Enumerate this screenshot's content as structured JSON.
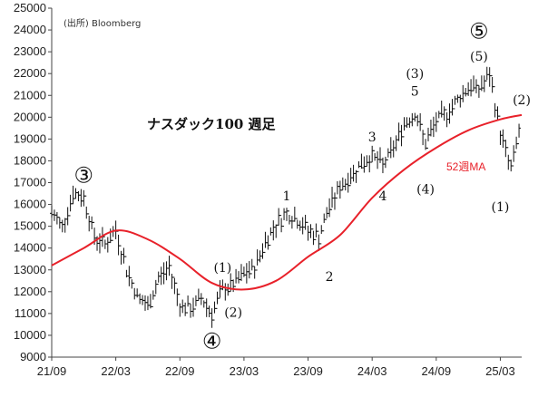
{
  "chart_data": {
    "type": "line",
    "title": "ナスダック100 週足",
    "source": "(出所) Bloomberg",
    "xlabel": "",
    "ylabel": "",
    "ylim": [
      9000,
      25000
    ],
    "y_ticks": [
      "25000",
      "24000",
      "23000",
      "22000",
      "21000",
      "20000",
      "19000",
      "18000",
      "17000",
      "16000",
      "15000",
      "14000",
      "13000",
      "12000",
      "11000",
      "10000",
      "9000"
    ],
    "x_ticks": [
      "21/09",
      "22/03",
      "22/09",
      "23/03",
      "23/09",
      "24/03",
      "24/09",
      "25/03"
    ],
    "x_range": [
      "2021-09",
      "2025-05"
    ],
    "grid": false,
    "price_series": {
      "name": "",
      "color": "#111111",
      "points": [
        [
          "2021-09",
          15600
        ],
        [
          "2021-10",
          15000
        ],
        [
          "2021-11",
          16500
        ],
        [
          "2021-12",
          16300
        ],
        [
          "2022-01",
          14500
        ],
        [
          "2022-02",
          14200
        ],
        [
          "2022-03",
          14800
        ],
        [
          "2022-04",
          13000
        ],
        [
          "2022-05",
          11800
        ],
        [
          "2022-06",
          11300
        ],
        [
          "2022-07",
          12600
        ],
        [
          "2022-08",
          13100
        ],
        [
          "2022-09",
          11400
        ],
        [
          "2022-10",
          11200
        ],
        [
          "2022-11",
          11700
        ],
        [
          "2022-12",
          11000
        ],
        [
          "2023-01",
          12100
        ],
        [
          "2023-02",
          12300
        ],
        [
          "2023-03",
          12800
        ],
        [
          "2023-04",
          13100
        ],
        [
          "2023-05",
          14300
        ],
        [
          "2023-06",
          15100
        ],
        [
          "2023-07",
          15600
        ],
        [
          "2023-08",
          15300
        ],
        [
          "2023-09",
          14800
        ],
        [
          "2023-10",
          14500
        ],
        [
          "2023-11",
          15900
        ],
        [
          "2023-12",
          16800
        ],
        [
          "2024-01",
          17300
        ],
        [
          "2024-02",
          17900
        ],
        [
          "2024-03",
          18200
        ],
        [
          "2024-04",
          17800
        ],
        [
          "2024-05",
          18600
        ],
        [
          "2024-06",
          19700
        ],
        [
          "2024-07",
          20200
        ],
        [
          "2024-08",
          18800
        ],
        [
          "2024-09",
          19800
        ],
        [
          "2024-10",
          20200
        ],
        [
          "2024-11",
          20800
        ],
        [
          "2024-12",
          21400
        ],
        [
          "2025-01",
          21300
        ],
        [
          "2025-02",
          21900
        ],
        [
          "2025-03",
          19300
        ],
        [
          "2025-04",
          17600
        ],
        [
          "2025-05",
          20000
        ]
      ]
    },
    "ma_series": {
      "name": "52週MA",
      "color": "#e8212a",
      "points": [
        [
          "2021-09",
          13200
        ],
        [
          "2021-12",
          14000
        ],
        [
          "2022-03",
          14800
        ],
        [
          "2022-06",
          14400
        ],
        [
          "2022-09",
          13500
        ],
        [
          "2022-12",
          12400
        ],
        [
          "2023-03",
          12100
        ],
        [
          "2023-06",
          12500
        ],
        [
          "2023-09",
          13600
        ],
        [
          "2023-12",
          14600
        ],
        [
          "2024-03",
          16300
        ],
        [
          "2024-06",
          17600
        ],
        [
          "2024-09",
          18600
        ],
        [
          "2024-12",
          19400
        ],
        [
          "2025-03",
          19900
        ],
        [
          "2025-05",
          20100
        ]
      ]
    },
    "annotations": [
      {
        "text": "③",
        "x": "2021-12",
        "y": 17000,
        "style": "circled"
      },
      {
        "text": "④",
        "x": "2022-12",
        "y": 9400,
        "style": "circled"
      },
      {
        "text": "⑤",
        "x": "2025-01",
        "y": 23600,
        "style": "circled"
      },
      {
        "text": "(1)",
        "x": "2023-01",
        "y": 12900,
        "style": "paren"
      },
      {
        "text": "(2)",
        "x": "2023-02",
        "y": 10850,
        "style": "paren"
      },
      {
        "text": "1",
        "x": "2023-07",
        "y": 16200,
        "style": "plain"
      },
      {
        "text": "2",
        "x": "2023-11",
        "y": 12500,
        "style": "plain"
      },
      {
        "text": "3",
        "x": "2024-03",
        "y": 18900,
        "style": "plain"
      },
      {
        "text": "4",
        "x": "2024-04",
        "y": 16200,
        "style": "plain"
      },
      {
        "text": "(3)",
        "x": "2024-07",
        "y": 21800,
        "style": "paren"
      },
      {
        "text": "5",
        "x": "2024-07",
        "y": 21000,
        "style": "plain"
      },
      {
        "text": "(4)",
        "x": "2024-08",
        "y": 16500,
        "style": "paren"
      },
      {
        "text": "(5)",
        "x": "2025-01",
        "y": 22600,
        "style": "paren"
      },
      {
        "text": "(2)",
        "x": "2025-05",
        "y": 20600,
        "style": "paren"
      },
      {
        "text": "(1)",
        "x": "2025-03",
        "y": 15700,
        "style": "paren"
      }
    ]
  }
}
